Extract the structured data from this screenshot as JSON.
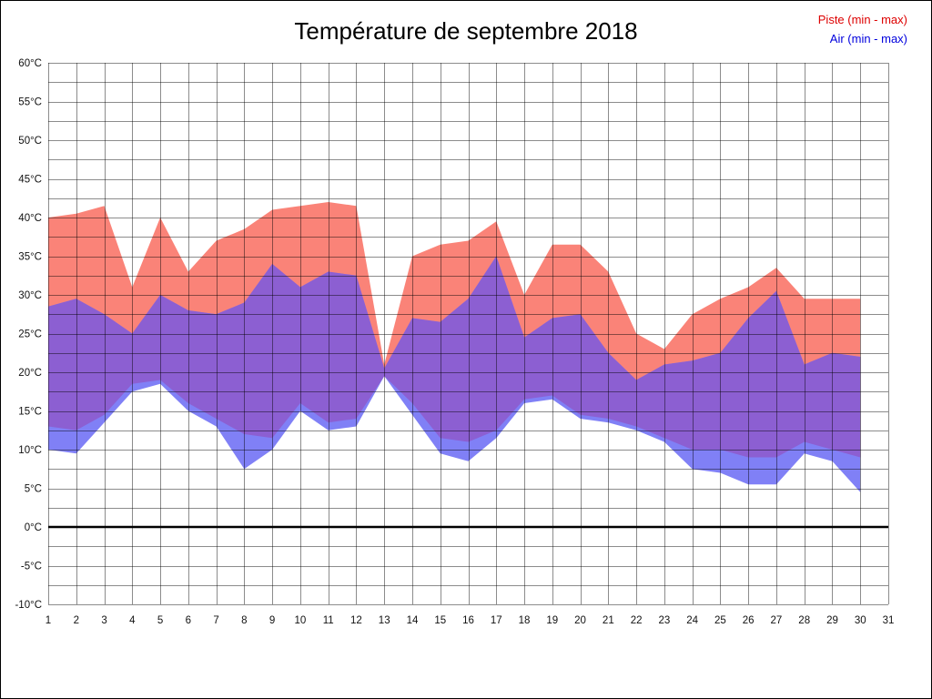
{
  "header": {
    "title": "Température de septembre 2018"
  },
  "legend": {
    "items": [
      {
        "label": "Piste (min - max)",
        "color": "#DD0000"
      },
      {
        "label": "Air (min - max)",
        "color": "#0000DD"
      }
    ]
  },
  "chart_data": {
    "type": "area",
    "title": "Température de septembre 2018",
    "xlabel": "",
    "ylabel": "",
    "xlim": [
      1,
      31
    ],
    "ylim": [
      -10,
      60
    ],
    "y_grid_step": 2.5,
    "grid": true,
    "zero_line": true,
    "legend_position": "top-right",
    "x_ticks": [
      1,
      2,
      3,
      4,
      5,
      6,
      7,
      8,
      9,
      10,
      11,
      12,
      13,
      14,
      15,
      16,
      17,
      18,
      19,
      20,
      21,
      22,
      23,
      24,
      25,
      26,
      27,
      28,
      29,
      30,
      31
    ],
    "y_ticks": [
      {
        "value": 60,
        "label": "60°C"
      },
      {
        "value": 55,
        "label": "55°C"
      },
      {
        "value": 50,
        "label": "50°C"
      },
      {
        "value": 45,
        "label": "45°C"
      },
      {
        "value": 40,
        "label": "40°C"
      },
      {
        "value": 35,
        "label": "35°C"
      },
      {
        "value": 30,
        "label": "30°C"
      },
      {
        "value": 25,
        "label": "25°C"
      },
      {
        "value": 20,
        "label": "20°C"
      },
      {
        "value": 15,
        "label": "15°C"
      },
      {
        "value": 10,
        "label": "10°C"
      },
      {
        "value": 5,
        "label": "5°C"
      },
      {
        "value": 0,
        "label": "0°C"
      },
      {
        "value": -5,
        "label": "-5°C"
      },
      {
        "value": -10,
        "label": "-10°C"
      }
    ],
    "days": [
      1,
      2,
      3,
      4,
      5,
      6,
      7,
      8,
      9,
      10,
      11,
      12,
      13,
      14,
      15,
      16,
      17,
      18,
      19,
      20,
      21,
      22,
      23,
      24,
      25,
      26,
      27,
      28,
      29,
      30
    ],
    "series": [
      {
        "name": "Piste (min - max)",
        "fill": "#FA8378",
        "max": [
          40,
          40.5,
          41.5,
          31,
          40,
          33,
          37,
          38.5,
          41,
          41.5,
          42,
          41.5,
          21,
          35,
          36.5,
          37,
          39.5,
          30,
          36.5,
          36.5,
          33,
          25,
          23,
          27.5,
          29.5,
          31,
          33.5,
          29.5,
          29.5,
          29.5
        ],
        "min": [
          13,
          12.5,
          14.5,
          18.5,
          19,
          16,
          14,
          12,
          11.5,
          16,
          13.5,
          14,
          19.5,
          16,
          11.5,
          11,
          12.5,
          16.5,
          17,
          14.5,
          14,
          13,
          11.5,
          10,
          10,
          9,
          9,
          11,
          10,
          9
        ]
      },
      {
        "name": "Air (min - max)",
        "fill": "#8080F6",
        "max": [
          28.5,
          29.5,
          27.5,
          25,
          30,
          28,
          27.5,
          29,
          34,
          31,
          33,
          32.5,
          20.5,
          27,
          26.5,
          29.5,
          35,
          24.5,
          27,
          27.5,
          22.5,
          19,
          21,
          21.5,
          22.5,
          27,
          30.5,
          21,
          22.5,
          22
        ]
      },
      {
        "name": "Air min",
        "fill": "#8080F6",
        "min": [
          10,
          9.5,
          13.5,
          17.5,
          18.5,
          15,
          13,
          7.5,
          10,
          15,
          12.5,
          13,
          19.5,
          14.5,
          9.5,
          8.5,
          11.5,
          16,
          16.5,
          14,
          13.5,
          12.5,
          11,
          7.5,
          7,
          5.5,
          5.5,
          9.5,
          8.5,
          4.5
        ]
      }
    ],
    "overlap_fill": "#8C5FD2",
    "grid_color": "rgba(0,0,0,0.45)",
    "axis_text_color": "#111111"
  }
}
